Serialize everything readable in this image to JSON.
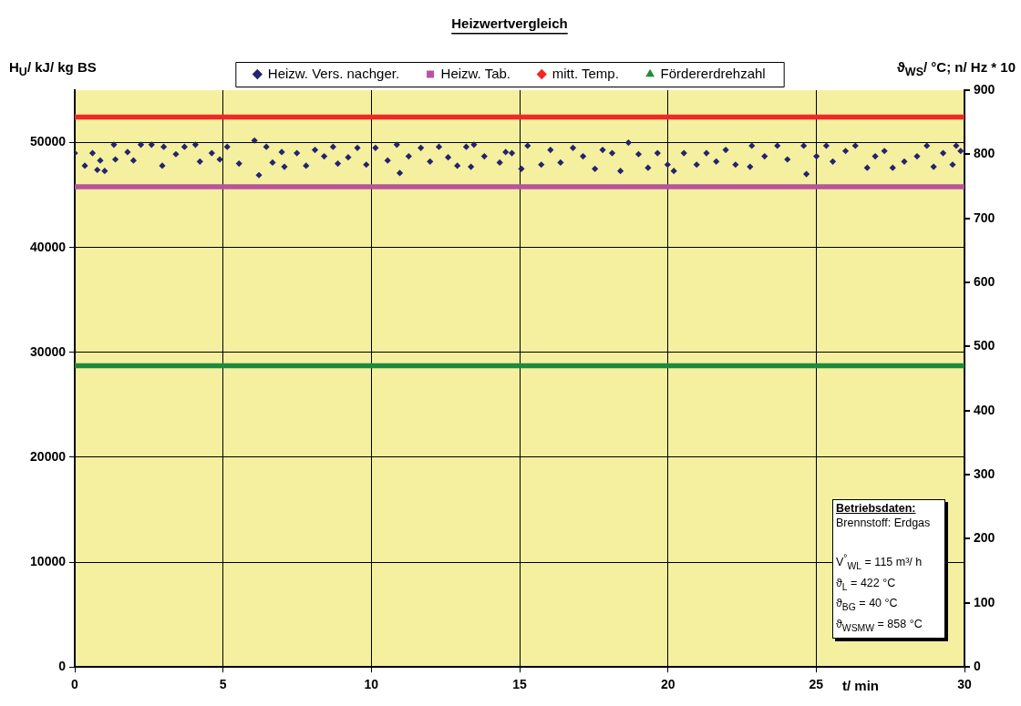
{
  "chart_data": {
    "type": "scatter",
    "title": "Heizwertvergleich",
    "xlabel": "t/ min",
    "ylabel": "H$_{U}$/ kJ/ kg BS",
    "y2label": "ϑ$_{WS}$/ °C; n/ Hz * 10",
    "xlim": [
      0,
      30
    ],
    "xticks": [
      0,
      5,
      10,
      15,
      20,
      25,
      30
    ],
    "ylim": [
      0,
      55000
    ],
    "yticks": [
      0,
      10000,
      20000,
      30000,
      40000,
      50000
    ],
    "y2lim": [
      0,
      900
    ],
    "y2ticks": [
      0,
      100,
      200,
      300,
      400,
      500,
      600,
      700,
      800,
      900
    ],
    "grid": true,
    "legend": "top",
    "series": [
      {
        "name": "Heizw. Vers. nachger.",
        "marker": "diamond",
        "color": "#23236e",
        "x": [
          0,
          0.34,
          0.6,
          0.76,
          0.86,
          1.01,
          1.32,
          1.37,
          1.78,
          1.98,
          2.23,
          2.59,
          2.95,
          3.0,
          3.41,
          3.7,
          4.07,
          4.22,
          4.62,
          4.89,
          5.14,
          5.54,
          6.06,
          6.21,
          6.46,
          6.67,
          6.98,
          7.07,
          7.49,
          7.8,
          8.1,
          8.41,
          8.71,
          8.87,
          9.22,
          9.53,
          9.83,
          10.14,
          10.55,
          10.86,
          10.96,
          11.26,
          11.67,
          11.98,
          12.28,
          12.59,
          12.9,
          13.2,
          13.36,
          13.46,
          13.81,
          14.33,
          14.53,
          14.74,
          15.06,
          15.27,
          15.73,
          16.04,
          16.38,
          16.8,
          17.14,
          17.54,
          17.8,
          18.12,
          18.4,
          18.67,
          19.01,
          19.33,
          19.65,
          19.99,
          20.2,
          20.54,
          20.97,
          21.3,
          21.63,
          21.95,
          22.28,
          22.77,
          22.83,
          23.26,
          23.69,
          24.03,
          24.58,
          24.67,
          25.01,
          25.34,
          25.56,
          25.99,
          26.32,
          26.72,
          26.99,
          27.3,
          27.58,
          27.97,
          28.4,
          28.73,
          28.96,
          29.28,
          29.6,
          29.72,
          29.87
        ],
        "values": [
          49000,
          47800,
          49000,
          47400,
          48300,
          47300,
          49800,
          48400,
          49100,
          48300,
          49800,
          49800,
          47800,
          49600,
          48900,
          49600,
          49800,
          48200,
          49000,
          48400,
          49600,
          48000,
          50200,
          46900,
          49600,
          48100,
          49100,
          47700,
          49000,
          47800,
          49300,
          48700,
          49600,
          48000,
          48600,
          49500,
          47900,
          49500,
          48300,
          49800,
          47100,
          48700,
          49500,
          48200,
          49600,
          48600,
          47800,
          49600,
          47700,
          49800,
          48700,
          48100,
          49100,
          49000,
          47500,
          49700,
          47900,
          49300,
          48100,
          49500,
          48700,
          47500,
          49300,
          49000,
          47300,
          50000,
          48900,
          47600,
          49000,
          47900,
          47300,
          49000,
          47900,
          49000,
          48200,
          49300,
          47900,
          47700,
          49700,
          48700,
          49700,
          48400,
          49700,
          47000,
          48700,
          49700,
          48200,
          49200,
          49700,
          47600,
          48700,
          49200,
          47600,
          48200,
          48700,
          49700,
          47700,
          49000,
          47900,
          49700,
          49200
        ]
      },
      {
        "name": "Heizw. Tab.",
        "type": "line",
        "marker": "square",
        "color": "#b8549c",
        "x": [
          0,
          30
        ],
        "values": [
          45800,
          45800
        ]
      },
      {
        "name": "mitt. Temp.",
        "type": "line",
        "marker": "diamond",
        "axis": "y2",
        "color": "#f02828",
        "x": [
          0,
          30
        ],
        "values": [
          858,
          858
        ]
      },
      {
        "name": "Fördererdrehzahl",
        "type": "line",
        "marker": "triangle",
        "axis": "y2",
        "color": "#1e8a3c",
        "x": [
          0,
          30
        ],
        "values": [
          470,
          470
        ]
      }
    ],
    "annotations": [
      "Betriebsdaten:",
      "Brennstoff: Erdgas",
      "V$^{°}$$_{WL}$ = 115 m³/ h",
      "ϑ$_{L}$ = 422 °C",
      "ϑ$_{BG}$ = 40 °C",
      "ϑ$_{WSMW}$ = 858 °C"
    ]
  }
}
